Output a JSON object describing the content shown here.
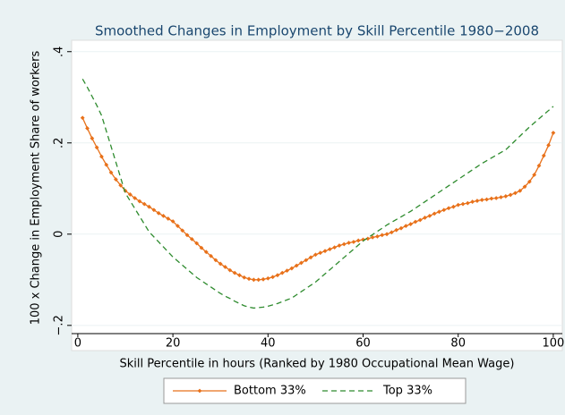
{
  "chart_data": {
    "type": "line",
    "title": "Smoothed Changes in Employment by Skill Percentile 1980−2008",
    "x_label": "Skill Percentile in hours (Ranked by 1980 Occupational Mean Wage)",
    "y_label": "100 x Change in Employment Share of workers",
    "x": [
      1,
      2,
      3,
      4,
      5,
      6,
      7,
      8,
      9,
      10,
      11,
      12,
      13,
      14,
      15,
      16,
      17,
      18,
      19,
      20,
      21,
      22,
      23,
      24,
      25,
      26,
      27,
      28,
      29,
      30,
      31,
      32,
      33,
      34,
      35,
      36,
      37,
      38,
      39,
      40,
      41,
      42,
      43,
      44,
      45,
      46,
      47,
      48,
      49,
      50,
      51,
      52,
      53,
      54,
      55,
      56,
      57,
      58,
      59,
      60,
      61,
      62,
      63,
      64,
      65,
      66,
      67,
      68,
      69,
      70,
      71,
      72,
      73,
      74,
      75,
      76,
      77,
      78,
      79,
      80,
      81,
      82,
      83,
      84,
      85,
      86,
      87,
      88,
      89,
      90,
      91,
      92,
      93,
      94,
      95,
      96,
      97,
      98,
      99,
      100
    ],
    "series": [
      {
        "name": "Bottom 33%",
        "color": "#e8711a",
        "markers": true,
        "dashed": false,
        "values": [
          0.255,
          0.232,
          0.21,
          0.19,
          0.17,
          0.152,
          0.135,
          0.12,
          0.107,
          0.095,
          0.087,
          0.079,
          0.072,
          0.066,
          0.06,
          0.053,
          0.046,
          0.04,
          0.034,
          0.028,
          0.018,
          0.008,
          -0.002,
          -0.011,
          -0.02,
          -0.03,
          -0.039,
          -0.048,
          -0.057,
          -0.065,
          -0.072,
          -0.079,
          -0.085,
          -0.09,
          -0.095,
          -0.098,
          -0.1,
          -0.1,
          -0.099,
          -0.097,
          -0.094,
          -0.09,
          -0.085,
          -0.08,
          -0.075,
          -0.069,
          -0.063,
          -0.057,
          -0.051,
          -0.045,
          -0.041,
          -0.037,
          -0.033,
          -0.029,
          -0.025,
          -0.022,
          -0.019,
          -0.017,
          -0.014,
          -0.012,
          -0.01,
          -0.007,
          -0.005,
          -0.002,
          0,
          0.004,
          0.009,
          0.013,
          0.018,
          0.022,
          0.027,
          0.031,
          0.036,
          0.04,
          0.045,
          0.049,
          0.053,
          0.057,
          0.06,
          0.064,
          0.066,
          0.068,
          0.071,
          0.073,
          0.075,
          0.076,
          0.078,
          0.079,
          0.081,
          0.083,
          0.086,
          0.09,
          0.095,
          0.104,
          0.115,
          0.13,
          0.15,
          0.172,
          0.195,
          0.222
        ]
      },
      {
        "name": "Top 33%",
        "color": "#2e8b2e",
        "markers": false,
        "dashed": true,
        "values": [
          0.34,
          0.322,
          0.302,
          0.282,
          0.26,
          0.226,
          0.192,
          0.158,
          0.124,
          0.09,
          0.073,
          0.056,
          0.039,
          0.022,
          0.005,
          -0.006,
          -0.017,
          -0.028,
          -0.039,
          -0.05,
          -0.059,
          -0.068,
          -0.077,
          -0.086,
          -0.095,
          -0.102,
          -0.109,
          -0.116,
          -0.123,
          -0.13,
          -0.136,
          -0.141,
          -0.147,
          -0.152,
          -0.157,
          -0.16,
          -0.162,
          -0.161,
          -0.16,
          -0.158,
          -0.155,
          -0.152,
          -0.148,
          -0.144,
          -0.14,
          -0.133,
          -0.126,
          -0.119,
          -0.112,
          -0.105,
          -0.096,
          -0.087,
          -0.078,
          -0.069,
          -0.06,
          -0.051,
          -0.042,
          -0.033,
          -0.024,
          -0.015,
          -0.008,
          -0.001,
          0.006,
          0.013,
          0.02,
          0.026,
          0.032,
          0.038,
          0.044,
          0.05,
          0.057,
          0.064,
          0.071,
          0.078,
          0.085,
          0.092,
          0.099,
          0.106,
          0.113,
          0.12,
          0.127,
          0.134,
          0.141,
          0.148,
          0.155,
          0.161,
          0.167,
          0.173,
          0.179,
          0.185,
          0.195,
          0.205,
          0.215,
          0.225,
          0.235,
          0.244,
          0.253,
          0.262,
          0.271,
          0.28
        ]
      }
    ],
    "xlim": [
      -1.3,
      101.9
    ],
    "xticks": [
      0,
      20,
      40,
      60,
      80,
      100
    ],
    "ylim": [
      -0.218,
      0.425
    ],
    "yticks": [
      {
        "value": -0.2,
        "label": "−.2"
      },
      0,
      {
        "value": 0.2,
        "label": ".2"
      },
      {
        "value": 0.4,
        "label": ".4"
      }
    ],
    "grid": true,
    "legend": "bottom"
  }
}
